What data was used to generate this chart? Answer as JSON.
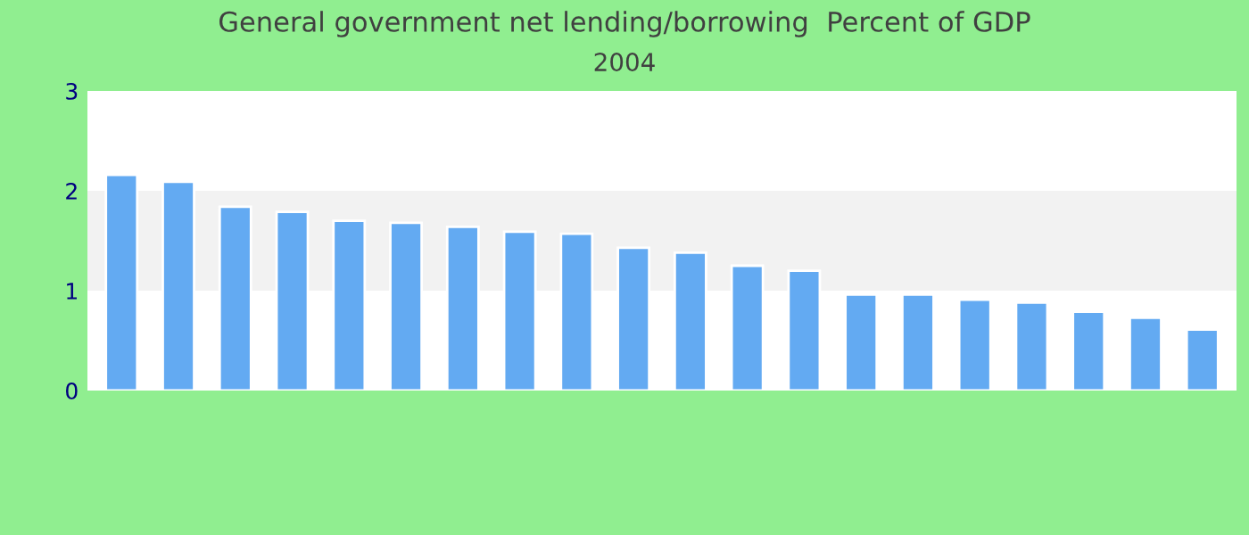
{
  "chart_data": {
    "type": "bar",
    "title": "General government net lending/borrowing  Percent of GDP",
    "subtitle": "2004",
    "categories": [
      null,
      null,
      null,
      null,
      null,
      null,
      null,
      null,
      null,
      null,
      null,
      null,
      null,
      null,
      null,
      null,
      null,
      null,
      null,
      null
    ],
    "values": [
      2.16,
      2.09,
      1.84,
      1.79,
      1.7,
      1.68,
      1.64,
      1.59,
      1.57,
      1.43,
      1.38,
      1.25,
      1.2,
      0.96,
      0.96,
      0.91,
      0.88,
      0.79,
      0.73,
      0.61
    ],
    "color": "#63aaf2",
    "ylim": [
      0,
      3
    ],
    "yticks": [
      0,
      1,
      2,
      3
    ],
    "bands": [
      {
        "axis": "y",
        "from": 1,
        "to": 2,
        "color": "#f2f2f2"
      }
    ],
    "grid": false,
    "legend": false
  }
}
